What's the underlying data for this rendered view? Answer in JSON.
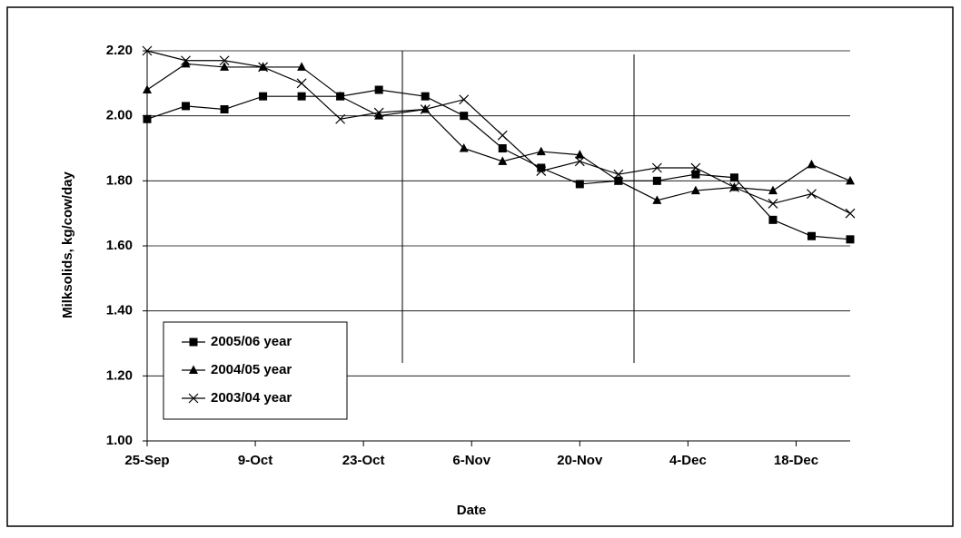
{
  "chart_data": {
    "type": "line",
    "y_label": "Milksolids, kg/cow/day",
    "x_label": "Date",
    "x": [
      "25-Sep",
      "30-Sep",
      "5-Oct",
      "10-Oct",
      "15-Oct",
      "20-Oct",
      "25-Oct",
      "31-Oct",
      "5-Nov",
      "10-Nov",
      "15-Nov",
      "20-Nov",
      "25-Nov",
      "30-Nov",
      "5-Dec",
      "10-Dec",
      "15-Dec",
      "20-Dec",
      "25-Dec"
    ],
    "xlim": [
      "25-Sep",
      "25-Dec"
    ],
    "xticks": [
      "25-Sep",
      "9-Oct",
      "23-Oct",
      "6-Nov",
      "20-Nov",
      "4-Dec",
      "18-Dec"
    ],
    "ylim": [
      1.0,
      2.2
    ],
    "yticks": [
      {
        "value": 1.0,
        "label": "1.00"
      },
      {
        "value": 1.2,
        "label": "1.20"
      },
      {
        "value": 1.4,
        "label": "1.40"
      },
      {
        "value": 1.6,
        "label": "1.60"
      },
      {
        "value": 1.8,
        "label": "1.80"
      },
      {
        "value": 2.0,
        "label": "2.00"
      },
      {
        "value": 2.2,
        "label": "2.20"
      }
    ],
    "grid": true,
    "legend": "lower left",
    "series": [
      {
        "name": "2005/06 year",
        "color": "#000000",
        "marker": "square",
        "values": [
          1.99,
          2.03,
          2.02,
          2.06,
          2.06,
          2.06,
          2.08,
          2.06,
          2.0,
          1.9,
          1.84,
          1.79,
          1.8,
          1.8,
          1.82,
          1.81,
          1.68,
          1.63,
          1.62
        ]
      },
      {
        "name": "2004/05 year",
        "color": "#000000",
        "marker": "triangle",
        "values": [
          2.08,
          2.16,
          2.15,
          2.15,
          2.15,
          2.06,
          2.0,
          2.02,
          1.9,
          1.86,
          1.89,
          1.88,
          1.8,
          1.74,
          1.77,
          1.78,
          1.77,
          1.85,
          1.8
        ]
      },
      {
        "name": "2003/04 year",
        "color": "#000000",
        "marker": "x",
        "values": [
          2.2,
          2.17,
          2.17,
          2.15,
          2.1,
          1.99,
          2.01,
          2.02,
          2.05,
          1.94,
          1.83,
          1.86,
          1.82,
          1.84,
          1.84,
          1.78,
          1.73,
          1.76,
          1.7
        ]
      }
    ]
  }
}
